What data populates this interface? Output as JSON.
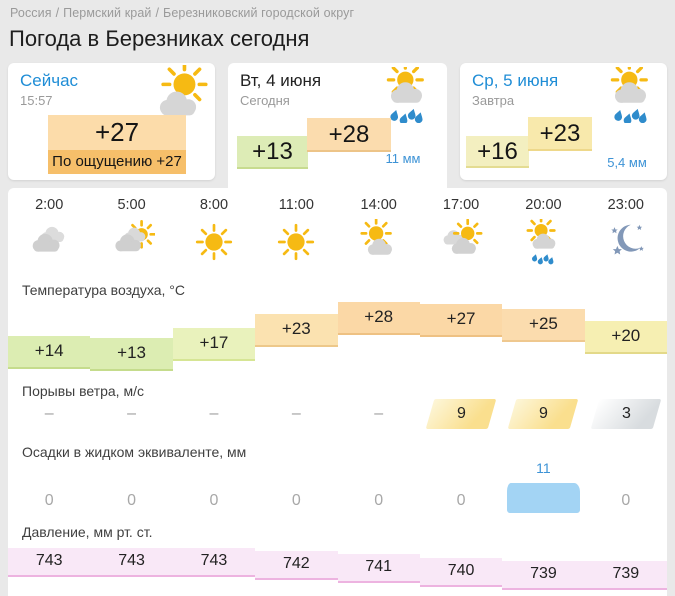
{
  "breadcrumb": {
    "separator": "/",
    "items": [
      "Россия",
      "Пермский край",
      "Березниковский городской округ"
    ]
  },
  "title": "Погода в Березниках сегодня",
  "cards": {
    "now": {
      "label": "Сейчас",
      "time": "15:57",
      "temperature": "+27",
      "feels_like": "По ощущению +27",
      "icon": "sun-behind-cloud"
    },
    "today": {
      "label": "Вт, 4 июня",
      "sublabel": "Сегодня",
      "temp_min": "+13",
      "temp_max": "+28",
      "precipitation": "11 мм",
      "icon": "sun-cloud-rain"
    },
    "tomorrow": {
      "label": "Ср, 5 июня",
      "sublabel": "Завтра",
      "temp_min": "+16",
      "temp_max": "+23",
      "precipitation": "5,4 мм",
      "icon": "sun-cloud-rain"
    }
  },
  "hours": {
    "times": [
      "2:00",
      "5:00",
      "8:00",
      "11:00",
      "14:00",
      "17:00",
      "20:00",
      "23:00"
    ],
    "icons": [
      "cloudy",
      "cloud-sun",
      "sunny",
      "sunny",
      "sun-cloud",
      "cloud-sun-big",
      "sun-cloud-rain",
      "clear-night"
    ]
  },
  "chart_data": [
    {
      "type": "bar",
      "title": "Температура воздуха, °C",
      "categories": [
        "2:00",
        "5:00",
        "8:00",
        "11:00",
        "14:00",
        "17:00",
        "20:00",
        "23:00"
      ],
      "values": [
        14,
        13,
        17,
        23,
        28,
        27,
        25,
        20
      ],
      "labels": [
        "+14",
        "+13",
        "+17",
        "+23",
        "+28",
        "+27",
        "+25",
        "+20"
      ]
    },
    {
      "type": "bar",
      "title": "Порывы ветра, м/с",
      "categories": [
        "2:00",
        "5:00",
        "8:00",
        "11:00",
        "14:00",
        "17:00",
        "20:00",
        "23:00"
      ],
      "values": [
        null,
        null,
        null,
        null,
        null,
        9,
        9,
        3
      ],
      "labels": [
        "–",
        "–",
        "–",
        "–",
        "–",
        "9",
        "9",
        "3"
      ],
      "styles": [
        "none",
        "none",
        "none",
        "none",
        "none",
        "yellow",
        "yellow",
        "gray"
      ]
    },
    {
      "type": "bar",
      "title": "Осадки в жидком эквиваленте, мм",
      "categories": [
        "2:00",
        "5:00",
        "8:00",
        "11:00",
        "14:00",
        "17:00",
        "20:00",
        "23:00"
      ],
      "values": [
        0,
        0,
        0,
        0,
        0,
        0,
        11,
        0
      ],
      "labels": [
        "0",
        "0",
        "0",
        "0",
        "0",
        "0",
        "11",
        "0"
      ],
      "bar_index": 6
    },
    {
      "type": "bar",
      "title": "Давление, мм рт. ст.",
      "categories": [
        "2:00",
        "5:00",
        "8:00",
        "11:00",
        "14:00",
        "17:00",
        "20:00",
        "23:00"
      ],
      "values": [
        743,
        743,
        743,
        742,
        741,
        740,
        739,
        739
      ],
      "labels": [
        "743",
        "743",
        "743",
        "742",
        "741",
        "740",
        "739",
        "739"
      ]
    }
  ],
  "colors": {
    "link_blue": "#1f8dd6",
    "precip_blue": "#3d93d6",
    "precip_bar": "#a3d4f4",
    "pressure_fill": "#f9e8f7",
    "pressure_border": "#edb3e0",
    "sun": "#f6ba13",
    "temp_fill": {
      "13": "#dcedb2",
      "14": "#dcedb2",
      "17": "#e9f2bc",
      "20": "#f6efb2",
      "23": "#fbe2b0",
      "25": "#fbdcae",
      "27": "#fbd8a6",
      "28": "#fbd8a6"
    },
    "temp_border": {
      "13": "#c5dc8c",
      "14": "#c5dc8c",
      "17": "#d6e594",
      "20": "#e3d989",
      "23": "#edc88a",
      "25": "#efc88f",
      "27": "#eec183",
      "28": "#eec183"
    }
  }
}
